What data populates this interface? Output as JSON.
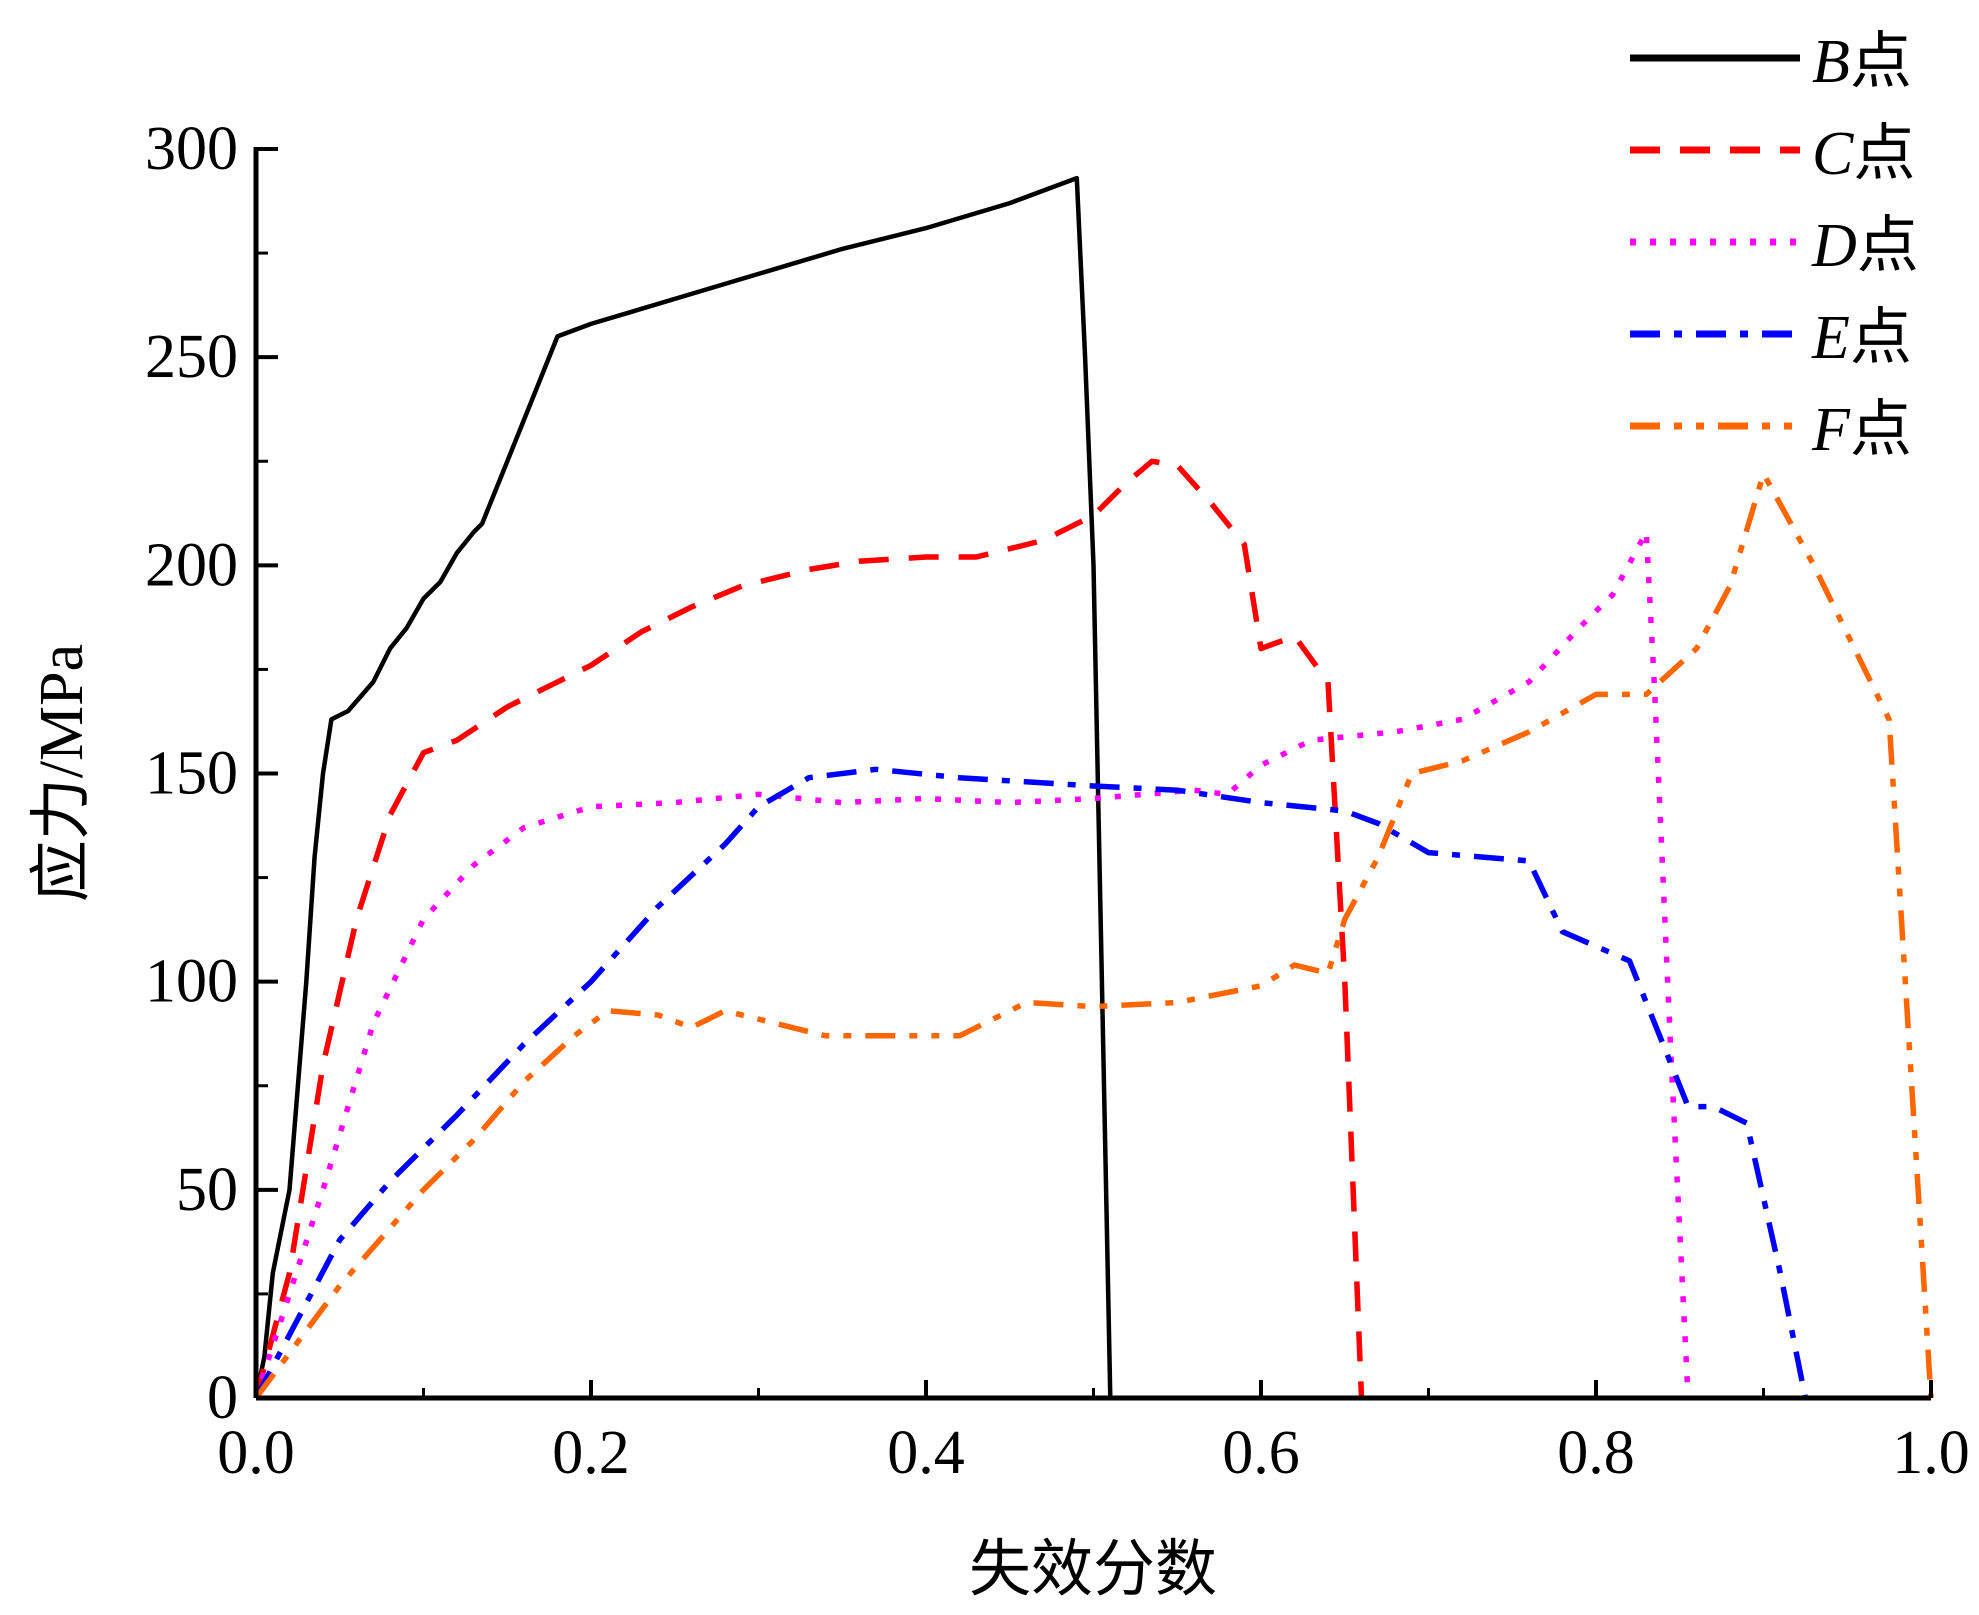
{
  "chart_data": {
    "type": "line",
    "title": "",
    "xlabel": "失效分数",
    "ylabel": "应力/MPa",
    "xlim": [
      0,
      1.0
    ],
    "ylim": [
      0,
      300
    ],
    "xticks": [
      "0.0",
      "0.2",
      "0.4",
      "0.6",
      "0.8",
      "1.0"
    ],
    "yticks": [
      "0",
      "50",
      "100",
      "150",
      "200",
      "250",
      "300"
    ],
    "grid": false,
    "legend_position": "top-right",
    "series": [
      {
        "name": "B点",
        "letter": "B",
        "suffix": "点",
        "color": "#000000",
        "style": "solid",
        "x": [
          0,
          0.005,
          0.01,
          0.02,
          0.03,
          0.035,
          0.04,
          0.045,
          0.055,
          0.07,
          0.08,
          0.09,
          0.1,
          0.11,
          0.12,
          0.13,
          0.135,
          0.15,
          0.17,
          0.18,
          0.2,
          0.25,
          0.3,
          0.35,
          0.4,
          0.45,
          0.49,
          0.495,
          0.5,
          0.505,
          0.51
        ],
        "y": [
          0,
          10,
          30,
          50,
          100,
          130,
          150,
          163,
          165,
          172,
          180,
          185,
          192,
          196,
          203,
          208,
          210,
          225,
          245,
          255,
          258,
          264,
          270,
          276,
          281,
          287,
          293,
          250,
          200,
          100,
          0
        ]
      },
      {
        "name": "C点",
        "letter": "C",
        "suffix": "点",
        "color": "#ff0000",
        "style": "dashed",
        "x": [
          0,
          0.02,
          0.04,
          0.06,
          0.08,
          0.1,
          0.12,
          0.15,
          0.18,
          0.2,
          0.23,
          0.26,
          0.29,
          0.33,
          0.36,
          0.4,
          0.43,
          0.47,
          0.5,
          0.52,
          0.535,
          0.55,
          0.57,
          0.59,
          0.6,
          0.62,
          0.64,
          0.65,
          0.66
        ],
        "y": [
          0,
          30,
          80,
          115,
          140,
          155,
          158,
          166,
          172,
          176,
          184,
          190,
          195,
          199,
          201,
          202,
          202,
          206,
          212,
          220,
          225,
          224,
          215,
          205,
          180,
          183,
          172,
          100,
          0
        ]
      },
      {
        "name": "D点",
        "letter": "D",
        "suffix": "点",
        "color": "#ff00ff",
        "style": "dotted",
        "x": [
          0,
          0.04,
          0.07,
          0.1,
          0.13,
          0.16,
          0.2,
          0.25,
          0.3,
          0.35,
          0.4,
          0.45,
          0.5,
          0.56,
          0.58,
          0.6,
          0.63,
          0.68,
          0.72,
          0.76,
          0.79,
          0.81,
          0.83,
          0.835,
          0.845,
          0.855
        ],
        "y": [
          0,
          50,
          90,
          115,
          128,
          137,
          142,
          143,
          145,
          143,
          144,
          143,
          144,
          146,
          145,
          152,
          158,
          160,
          163,
          172,
          185,
          193,
          208,
          170,
          80,
          0
        ]
      },
      {
        "name": "E点",
        "letter": "E",
        "suffix": "点",
        "color": "#0000ff",
        "style": "dashdot",
        "x": [
          0,
          0.05,
          0.08,
          0.12,
          0.16,
          0.2,
          0.24,
          0.28,
          0.3,
          0.33,
          0.37,
          0.42,
          0.5,
          0.55,
          0.6,
          0.65,
          0.67,
          0.7,
          0.76,
          0.78,
          0.82,
          0.84,
          0.855,
          0.87,
          0.89,
          0.91,
          0.925
        ],
        "y": [
          0,
          38,
          52,
          68,
          85,
          100,
          118,
          133,
          142,
          149,
          151,
          149,
          147,
          146,
          143,
          141,
          138,
          131,
          129,
          112,
          105,
          85,
          70,
          70,
          66,
          30,
          0
        ]
      },
      {
        "name": "F点",
        "letter": "F",
        "suffix": "点",
        "color": "#ff6600",
        "style": "dashdotdot",
        "x": [
          0,
          0.05,
          0.1,
          0.13,
          0.16,
          0.19,
          0.21,
          0.24,
          0.26,
          0.28,
          0.31,
          0.34,
          0.38,
          0.42,
          0.46,
          0.5,
          0.55,
          0.6,
          0.62,
          0.64,
          0.65,
          0.67,
          0.69,
          0.72,
          0.76,
          0.8,
          0.83,
          0.86,
          0.88,
          0.9,
          0.93,
          0.975,
          1.0
        ],
        "y": [
          0,
          27,
          50,
          62,
          76,
          87,
          93,
          92,
          89,
          93,
          90,
          87,
          87,
          87,
          95,
          94,
          95,
          99,
          104,
          102,
          115,
          130,
          150,
          153,
          160,
          169,
          169,
          180,
          195,
          222,
          200,
          163,
          0
        ]
      }
    ]
  }
}
